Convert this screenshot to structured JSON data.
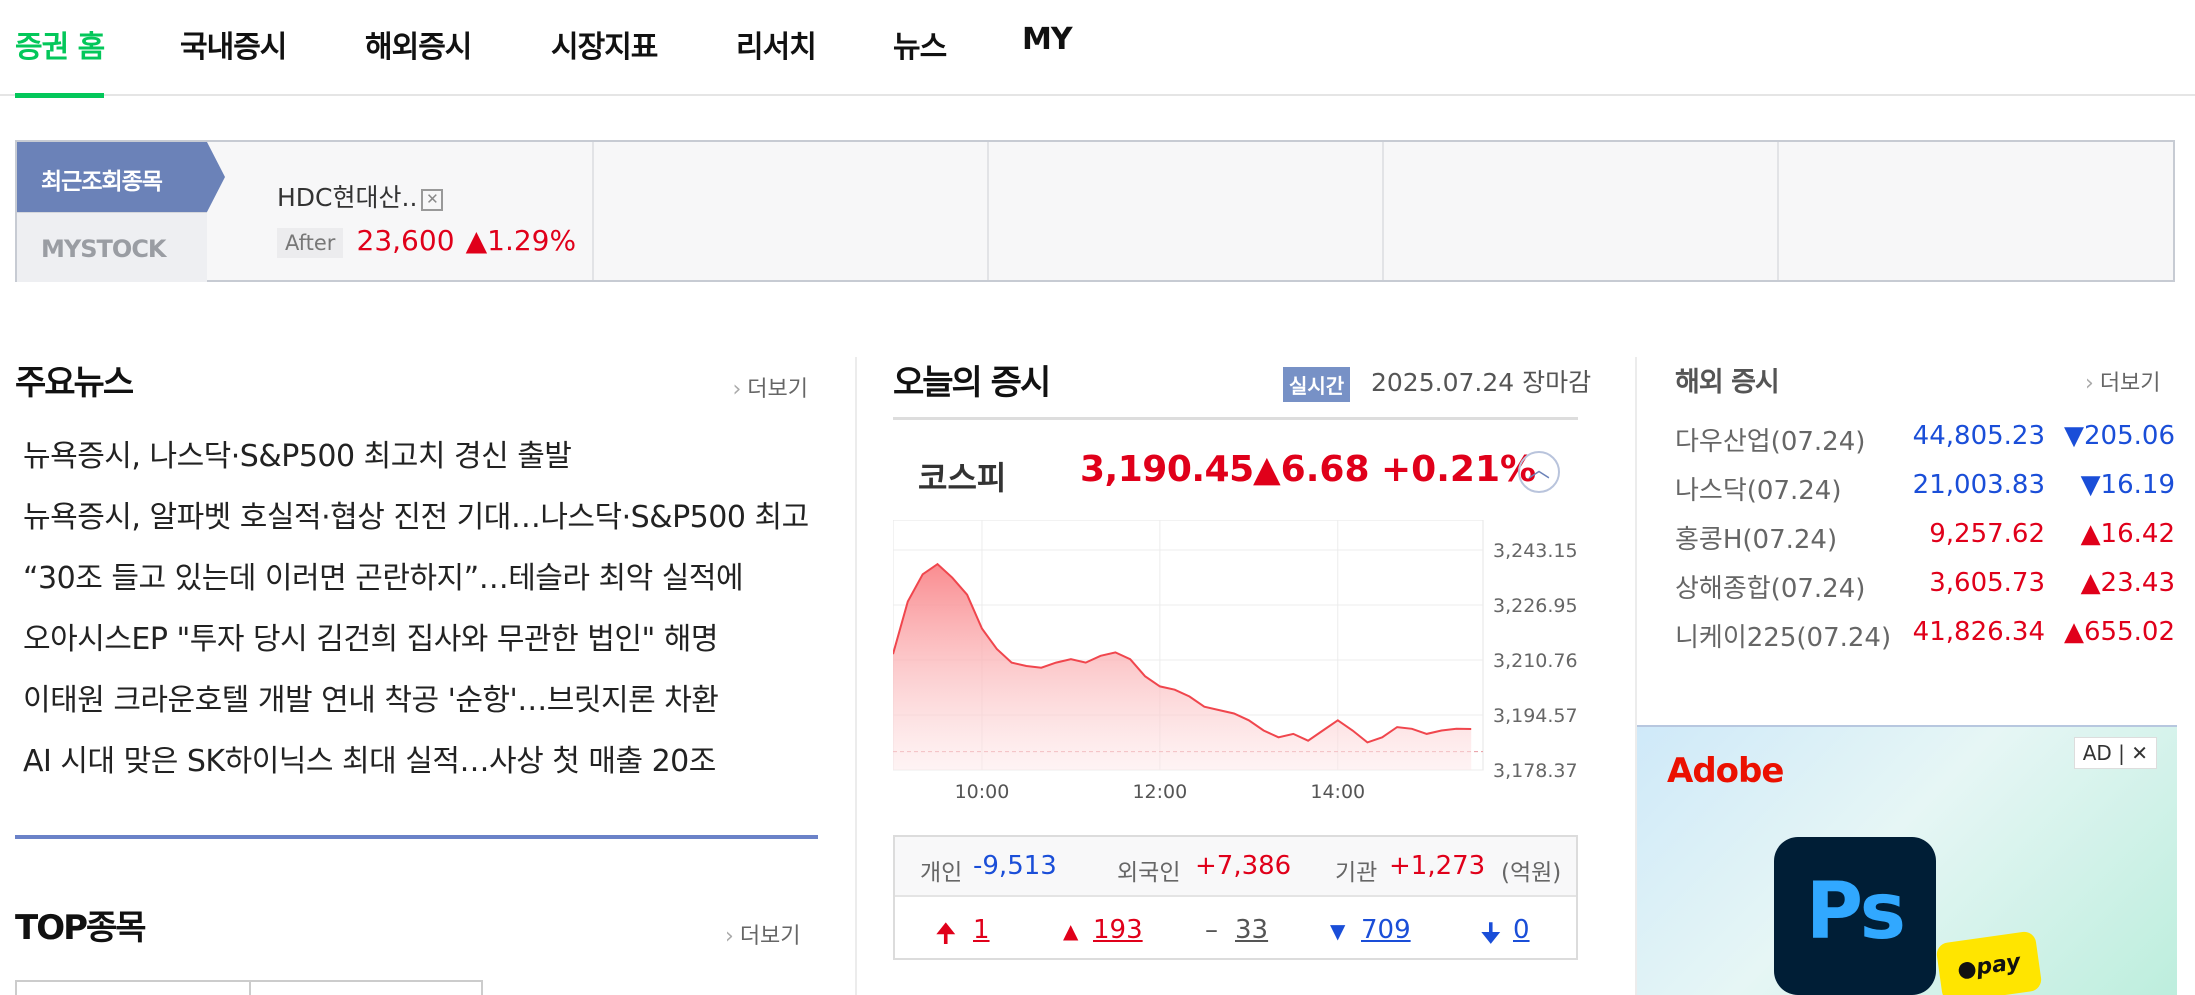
{
  "nav": {
    "tabs": [
      {
        "label": "증권 홈",
        "active": true
      },
      {
        "label": "국내증시"
      },
      {
        "label": "해외증시"
      },
      {
        "label": "시장지표"
      },
      {
        "label": "리서치"
      },
      {
        "label": "뉴스"
      },
      {
        "label": "MY"
      }
    ]
  },
  "recent": {
    "tab_recent": "최근조회종목",
    "tab_mystock": "MYSTOCK",
    "stock": {
      "name": "HDC현대산..",
      "close_icon": "close-icon",
      "session": "After",
      "price": "23,600",
      "change": "▲1.29%"
    }
  },
  "news": {
    "title": "주요뉴스",
    "more": "더보기",
    "items": [
      "뉴욕증시, 나스닥·S&P500 최고치 경신 출발",
      "뉴욕증시, 알파벳 호실적·협상 진전 기대…나스닥·S&P500 최고",
      "“30조 들고 있는데 이러면 곤란하지”…테슬라 최악 실적에",
      "오아시스EP \"투자 당시 김건희 집사와 무관한 법인\" 해명",
      "이태원 크라운호텔 개발 연내 착공 '순항'…브릿지론 차환",
      "AI 시대 맞은 SK하이닉스 최대 실적…사상 첫 매출 20조"
    ]
  },
  "top": {
    "title": "TOP종목",
    "more": "더보기"
  },
  "market": {
    "title": "오늘의 증시",
    "live": "실시간",
    "date": "2025.07.24 장마감",
    "index_name": "코스피",
    "value": "3,190.45",
    "change": "▲6.68",
    "pct": "+0.21%",
    "investors": {
      "individual_label": "개인",
      "individual": "-9,513",
      "foreign_label": "외국인",
      "foreign": "+7,386",
      "inst_label": "기관",
      "inst": "+1,273",
      "unit": "(억원)"
    },
    "breadth": {
      "upper_limit": "1",
      "up": "193",
      "flat": "33",
      "down": "709",
      "lower_limit": "0"
    }
  },
  "chart_data": {
    "type": "area",
    "title": "",
    "x": [
      "09:00",
      "09:10",
      "09:20",
      "09:30",
      "09:40",
      "09:50",
      "10:00",
      "10:10",
      "10:20",
      "10:30",
      "10:40",
      "10:50",
      "11:00",
      "11:10",
      "11:20",
      "11:30",
      "11:40",
      "11:50",
      "12:00",
      "12:10",
      "12:20",
      "12:30",
      "12:40",
      "12:50",
      "13:00",
      "13:10",
      "13:20",
      "13:30",
      "13:40",
      "13:50",
      "14:00",
      "14:10",
      "14:20",
      "14:30",
      "14:40",
      "14:50",
      "15:00",
      "15:10",
      "15:20",
      "15:30"
    ],
    "values": [
      3212.5,
      3228,
      3236,
      3239,
      3235,
      3230,
      3220,
      3214,
      3210,
      3209,
      3208.5,
      3210,
      3211,
      3210,
      3212,
      3213,
      3211,
      3206,
      3203,
      3202,
      3200,
      3197,
      3196,
      3195,
      3193,
      3190,
      3188,
      3189,
      3187,
      3190,
      3193,
      3190,
      3186.5,
      3188,
      3191,
      3190.5,
      3189,
      3190,
      3190.5,
      3190.45
    ],
    "prev_close": 3183.77,
    "ylim": [
      3178.37,
      3243.15
    ],
    "y_ticks": [
      "3,243.15",
      "3,226.95",
      "3,210.76",
      "3,194.57",
      "3,178.37"
    ],
    "x_ticks": [
      "10:00",
      "12:00",
      "14:00"
    ],
    "color": "#f0464d"
  },
  "world": {
    "title": "해외 증시",
    "more": "더보기",
    "rows": [
      {
        "name": "다우산업(07.24)",
        "value": "44,805.23",
        "change": "▼205.06",
        "dir": "down"
      },
      {
        "name": "나스닥(07.24)",
        "value": "21,003.83",
        "change": "▼16.19",
        "dir": "down"
      },
      {
        "name": "홍콩H(07.24)",
        "value": "9,257.62",
        "change": "▲16.42",
        "dir": "up"
      },
      {
        "name": "상해종합(07.24)",
        "value": "3,605.73",
        "change": "▲23.43",
        "dir": "up"
      },
      {
        "name": "니케이225(07.24)",
        "value": "41,826.34",
        "change": "▲655.02",
        "dir": "up"
      }
    ]
  },
  "ad": {
    "brand": "Adobe",
    "tag": "AD | ✕",
    "app_icon": "Ps",
    "pay": "●pay"
  }
}
